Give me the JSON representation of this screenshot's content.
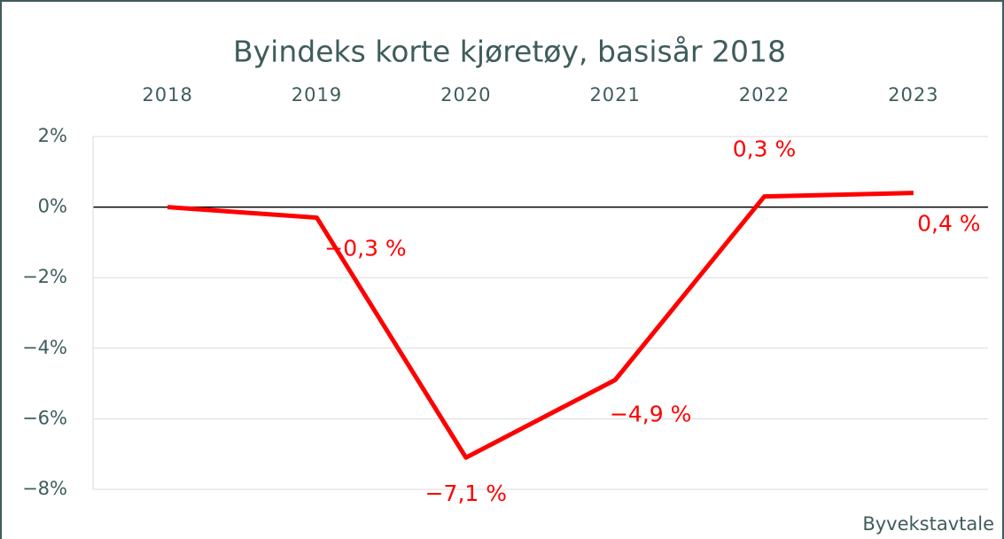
{
  "chart_data": {
    "type": "line",
    "title": "Byindeks korte kjøretøy, basisår 2018",
    "categories": [
      "2018",
      "2019",
      "2020",
      "2021",
      "2022",
      "2023"
    ],
    "series": [
      {
        "name": "Byindeks",
        "color": "#ff0000",
        "values": [
          0,
          -0.3,
          -7.1,
          -4.9,
          0.3,
          0.4
        ],
        "value_labels": [
          null,
          "−0,3 %",
          "−7,1 %",
          "−4,9 %",
          "0,3 %",
          "0,4 %"
        ]
      }
    ],
    "ylim": [
      -8,
      2
    ],
    "yticks": [
      {
        "value": 2,
        "label": "2%"
      },
      {
        "value": 0,
        "label": "0%"
      },
      {
        "value": -2,
        "label": "−2%"
      },
      {
        "value": -4,
        "label": "−4%"
      },
      {
        "value": -6,
        "label": "−6%"
      },
      {
        "value": -8,
        "label": "−8%"
      }
    ],
    "grid": true,
    "source": "Byvekstavtale"
  }
}
